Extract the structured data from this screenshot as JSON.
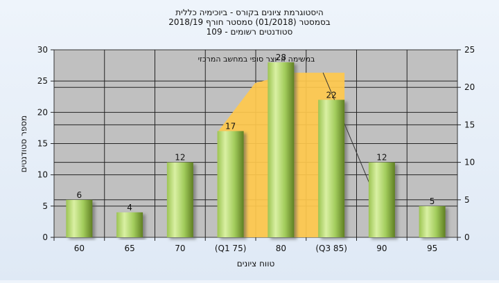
{
  "chart_data": {
    "type": "bar",
    "title_lines": [
      "היסטוגרמת ציונים בקורס - ביוכימיה כללית",
      "בסמסטר  (01/2018)  סמסטר חורף 2018/19",
      "סטודנטים רשומים - 109"
    ],
    "annotation": "במשימה זו יוצר סופי במחשב המרכזי",
    "ylabel": "מספר סטודנטים",
    "xlabel": "טווח ציונים",
    "categories": [
      "60",
      "65",
      "70",
      "(Q1 75)",
      "80",
      "(Q3 85)",
      "90",
      "95"
    ],
    "values": [
      6,
      4,
      12,
      17,
      28,
      22,
      12,
      5
    ],
    "data_labels": [
      "6",
      "4",
      "12",
      "17",
      "28",
      "22",
      "12",
      "5"
    ],
    "ylim": [
      0,
      30
    ],
    "yticks": [
      0,
      5,
      10,
      15,
      20,
      25,
      30
    ],
    "ylim_right": [
      0,
      25
    ],
    "yticks_right": [
      0,
      5,
      10,
      15,
      20,
      25
    ],
    "grid": true,
    "quartile_band": {
      "from_category": "(Q1 75)",
      "to_category": "(Q3 85)"
    },
    "colors": {
      "plot_bg": "#c0c0c0",
      "bar_light": "#d8f0a0",
      "bar_mid": "#a8d060",
      "bar_dark": "#6a8c28",
      "band": "#ffc94d"
    }
  }
}
